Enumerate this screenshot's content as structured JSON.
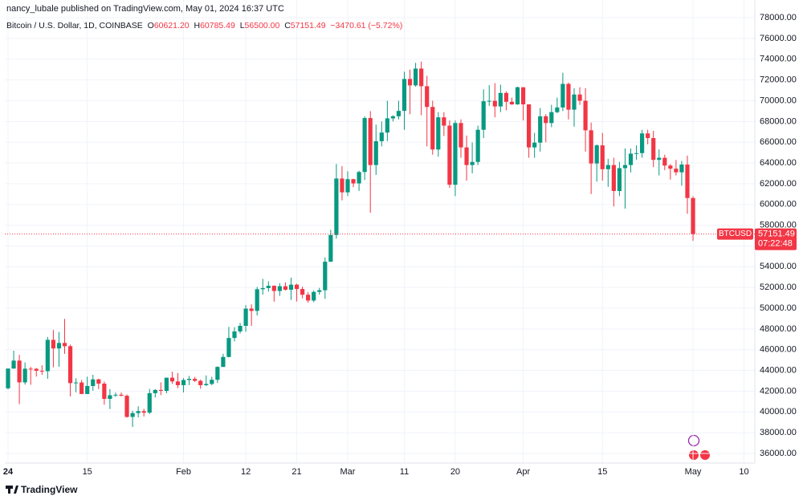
{
  "header": "nancy_lubale published on TradingView.com, May 01, 2024 16:37 UTC",
  "legend": {
    "symbol": "Bitcoin / U.S. Dollar, 1D, COINBASE",
    "o": "O",
    "o_value": "60621.20",
    "h": "H",
    "h_value": "60785.49",
    "l": "L",
    "l_value": "56500.00",
    "c": "C",
    "c_value": "57151.49",
    "change": "−3470.61 (−5.72%)"
  },
  "last_price": {
    "symbol": "BTCUSD",
    "value": 57151.49,
    "label": "57151.49",
    "countdown": "07:22:48"
  },
  "footer": "TradingView",
  "chart_data": {
    "type": "candlestick",
    "up_color": "#089981",
    "down_color": "#f23645",
    "grid": true,
    "ylim": [
      35070,
      79710
    ],
    "yticks": [
      {
        "value": 36000,
        "label": "36000.00"
      },
      {
        "value": 38000,
        "label": "38000.00"
      },
      {
        "value": 40000,
        "label": "40000.00"
      },
      {
        "value": 42000,
        "label": "42000.00"
      },
      {
        "value": 44000,
        "label": "44000.00"
      },
      {
        "value": 46000,
        "label": "46000.00"
      },
      {
        "value": 48000,
        "label": "48000.00"
      },
      {
        "value": 50000,
        "label": "50000.00"
      },
      {
        "value": 52000,
        "label": "52000.00"
      },
      {
        "value": 54000,
        "label": "54000.00"
      },
      {
        "value": 56000,
        "label": "56000.00"
      },
      {
        "value": 58000,
        "label": "58000.00"
      },
      {
        "value": 60000,
        "label": "60000.00"
      },
      {
        "value": 62000,
        "label": "62000.00"
      },
      {
        "value": 64000,
        "label": "64000.00"
      },
      {
        "value": 66000,
        "label": "66000.00"
      },
      {
        "value": 68000,
        "label": "68000.00"
      },
      {
        "value": 70000,
        "label": "70000.00"
      },
      {
        "value": 72000,
        "label": "72000.00"
      },
      {
        "value": 74000,
        "label": "74000.00"
      },
      {
        "value": 76000,
        "label": "76000.00"
      },
      {
        "value": 78000,
        "label": "78000.00"
      }
    ],
    "xticks": [
      {
        "value": "2024-01-01",
        "label": "24"
      },
      {
        "value": "2024-01-15",
        "label": "15"
      },
      {
        "value": "2024-02-01",
        "label": "Feb"
      },
      {
        "value": "2024-02-12",
        "label": "12"
      },
      {
        "value": "2024-02-21",
        "label": "21"
      },
      {
        "value": "2024-03-01",
        "label": "Mar"
      },
      {
        "value": "2024-03-11",
        "label": "11"
      },
      {
        "value": "2024-03-20",
        "label": "20"
      },
      {
        "value": "2024-04-01",
        "label": "Apr"
      },
      {
        "value": "2024-04-15",
        "label": "15"
      },
      {
        "value": "2024-05-01",
        "label": "May"
      },
      {
        "value": "2024-05-10",
        "label": "10"
      }
    ],
    "categories": [
      "2024-01-01",
      "2024-01-02",
      "2024-01-03",
      "2024-01-04",
      "2024-01-05",
      "2024-01-06",
      "2024-01-07",
      "2024-01-08",
      "2024-01-09",
      "2024-01-10",
      "2024-01-11",
      "2024-01-12",
      "2024-01-13",
      "2024-01-14",
      "2024-01-15",
      "2024-01-16",
      "2024-01-17",
      "2024-01-18",
      "2024-01-19",
      "2024-01-20",
      "2024-01-21",
      "2024-01-22",
      "2024-01-23",
      "2024-01-24",
      "2024-01-25",
      "2024-01-26",
      "2024-01-27",
      "2024-01-28",
      "2024-01-29",
      "2024-01-30",
      "2024-01-31",
      "2024-02-01",
      "2024-02-02",
      "2024-02-03",
      "2024-02-04",
      "2024-02-05",
      "2024-02-06",
      "2024-02-07",
      "2024-02-08",
      "2024-02-09",
      "2024-02-10",
      "2024-02-11",
      "2024-02-12",
      "2024-02-13",
      "2024-02-14",
      "2024-02-15",
      "2024-02-16",
      "2024-02-17",
      "2024-02-18",
      "2024-02-19",
      "2024-02-20",
      "2024-02-21",
      "2024-02-22",
      "2024-02-23",
      "2024-02-24",
      "2024-02-25",
      "2024-02-26",
      "2024-02-27",
      "2024-02-28",
      "2024-02-29",
      "2024-03-01",
      "2024-03-02",
      "2024-03-03",
      "2024-03-04",
      "2024-03-05",
      "2024-03-06",
      "2024-03-07",
      "2024-03-08",
      "2024-03-09",
      "2024-03-10",
      "2024-03-11",
      "2024-03-12",
      "2024-03-13",
      "2024-03-14",
      "2024-03-15",
      "2024-03-16",
      "2024-03-17",
      "2024-03-18",
      "2024-03-19",
      "2024-03-20",
      "2024-03-21",
      "2024-03-22",
      "2024-03-23",
      "2024-03-24",
      "2024-03-25",
      "2024-03-26",
      "2024-03-27",
      "2024-03-28",
      "2024-03-29",
      "2024-03-30",
      "2024-03-31",
      "2024-04-01",
      "2024-04-02",
      "2024-04-03",
      "2024-04-04",
      "2024-04-05",
      "2024-04-06",
      "2024-04-07",
      "2024-04-08",
      "2024-04-09",
      "2024-04-10",
      "2024-04-11",
      "2024-04-12",
      "2024-04-13",
      "2024-04-14",
      "2024-04-15",
      "2024-04-16",
      "2024-04-17",
      "2024-04-18",
      "2024-04-19",
      "2024-04-20",
      "2024-04-21",
      "2024-04-22",
      "2024-04-23",
      "2024-04-24",
      "2024-04-25",
      "2024-04-26",
      "2024-04-27",
      "2024-04-28",
      "2024-04-29",
      "2024-04-30",
      "2024-05-01"
    ],
    "open": [
      42280,
      44180,
      44950,
      42850,
      44170,
      44160,
      43970,
      43930,
      46950,
      46120,
      46650,
      46340,
      42780,
      42840,
      41730,
      42500,
      43140,
      42730,
      41260,
      41610,
      41660,
      41560,
      39520,
      39890,
      40080,
      39930,
      41810,
      42120,
      42030,
      43300,
      42940,
      42580,
      43080,
      43190,
      43000,
      42580,
      42700,
      43100,
      44340,
      45300,
      47130,
      47760,
      48300,
      49960,
      49740,
      51830,
      51940,
      52160,
      51660,
      52120,
      51780,
      52270,
      51850,
      51300,
      50740,
      51570,
      51730,
      54480,
      57060,
      62500,
      61170,
      62440,
      62030,
      63130,
      68330,
      63800,
      66100,
      66930,
      68300,
      68500,
      69020,
      72100,
      71480,
      73100,
      71400,
      69400,
      65300,
      68400,
      67600,
      61900,
      67850,
      65500,
      63800,
      64100,
      67200,
      69950,
      69990,
      69450,
      70750,
      69900,
      69650,
      71300,
      69650,
      65500,
      65960,
      68500,
      67850,
      68900,
      69350,
      71620,
      69140,
      70600,
      70000,
      67150,
      63950,
      65700,
      63400,
      63800,
      61300,
      63500,
      63800,
      64900,
      64950,
      66850,
      66400,
      64300,
      64500,
      63750,
      63450,
      63100,
      63850,
      60621.2
    ],
    "high": [
      44200,
      45900,
      45500,
      44770,
      44350,
      44240,
      44500,
      47230,
      47900,
      47700,
      48970,
      46500,
      43250,
      43080,
      43400,
      43580,
      43200,
      42930,
      42200,
      41870,
      41880,
      41680,
      40120,
      40550,
      40300,
      42220,
      42200,
      42850,
      43310,
      43880,
      43750,
      43260,
      43470,
      43380,
      43120,
      43520,
      43390,
      44410,
      45600,
      48200,
      48170,
      48580,
      50300,
      50370,
      52050,
      52830,
      52600,
      52200,
      52400,
      52500,
      52950,
      52370,
      52080,
      51550,
      51700,
      51960,
      54900,
      57560,
      63900,
      63700,
      63200,
      62470,
      63250,
      68500,
      69000,
      67700,
      68000,
      70000,
      68600,
      70000,
      72800,
      73000,
      73650,
      73780,
      72400,
      70000,
      68900,
      68900,
      68100,
      68100,
      68200,
      66650,
      65980,
      67600,
      71100,
      71500,
      71700,
      71550,
      70900,
      70300,
      71350,
      71300,
      69650,
      66900,
      69300,
      68700,
      69600,
      70300,
      72700,
      71750,
      71200,
      71300,
      71200,
      67900,
      65800,
      66900,
      64400,
      64500,
      64100,
      65400,
      65400,
      65700,
      67200,
      67200,
      67100,
      65300,
      64800,
      63900,
      64300,
      64200,
      64700,
      60785.49
    ],
    "low": [
      42180,
      44180,
      40750,
      42640,
      42620,
      43410,
      43580,
      43200,
      44300,
      44350,
      45600,
      41500,
      41900,
      41720,
      41720,
      42050,
      42200,
      40700,
      40280,
      41450,
      41500,
      39440,
      38550,
      39480,
      39560,
      39800,
      41400,
      41620,
      41800,
      42700,
      42300,
      41880,
      42590,
      42880,
      42240,
      42510,
      42570,
      42800,
      44340,
      45250,
      46800,
      47560,
      47730,
      48300,
      49300,
      51310,
      51600,
      50630,
      51200,
      51700,
      50800,
      50650,
      50950,
      50540,
      50580,
      51300,
      50900,
      54470,
      56700,
      60400,
      60800,
      61670,
      61300,
      62350,
      59200,
      62850,
      65600,
      66100,
      68000,
      68200,
      67200,
      68700,
      71350,
      68600,
      65600,
      64800,
      64600,
      66600,
      61600,
      60800,
      64500,
      62300,
      63000,
      63800,
      66400,
      69500,
      68400,
      68900,
      69080,
      69600,
      69600,
      68100,
      64500,
      64500,
      65100,
      66000,
      67450,
      68800,
      69000,
      68200,
      67500,
      69600,
      65100,
      61000,
      62200,
      62300,
      61700,
      59800,
      60800,
      59600,
      63100,
      64300,
      64500,
      65800,
      63600,
      62800,
      63300,
      62400,
      62800,
      61800,
      59100,
      56500
    ],
    "close": [
      44180,
      44950,
      42850,
      44170,
      44160,
      43970,
      43930,
      46950,
      46120,
      46650,
      46340,
      42780,
      42840,
      41730,
      42500,
      43140,
      42730,
      41260,
      41610,
      41660,
      41560,
      39520,
      39890,
      40080,
      39930,
      41810,
      42120,
      42030,
      43300,
      42940,
      42580,
      43080,
      43190,
      43000,
      42580,
      42700,
      43100,
      44340,
      45300,
      47130,
      47760,
      48300,
      49960,
      49740,
      51830,
      51940,
      52160,
      51660,
      52120,
      51780,
      52270,
      51850,
      51300,
      50740,
      51570,
      51730,
      54480,
      57060,
      62500,
      61170,
      62440,
      62030,
      63130,
      68330,
      63800,
      66100,
      66930,
      68300,
      68500,
      69020,
      72100,
      71480,
      73100,
      71400,
      69400,
      65300,
      68400,
      67600,
      61900,
      67850,
      65500,
      63800,
      64100,
      67200,
      69950,
      69990,
      69450,
      70750,
      69900,
      69650,
      71300,
      69650,
      65500,
      65960,
      68500,
      67850,
      68900,
      69350,
      71620,
      69140,
      70600,
      70000,
      67150,
      63950,
      65700,
      63400,
      63800,
      61300,
      63500,
      63800,
      64900,
      64950,
      66850,
      66400,
      64300,
      64500,
      63750,
      63450,
      63100,
      63850,
      60620,
      57151.49
    ]
  }
}
